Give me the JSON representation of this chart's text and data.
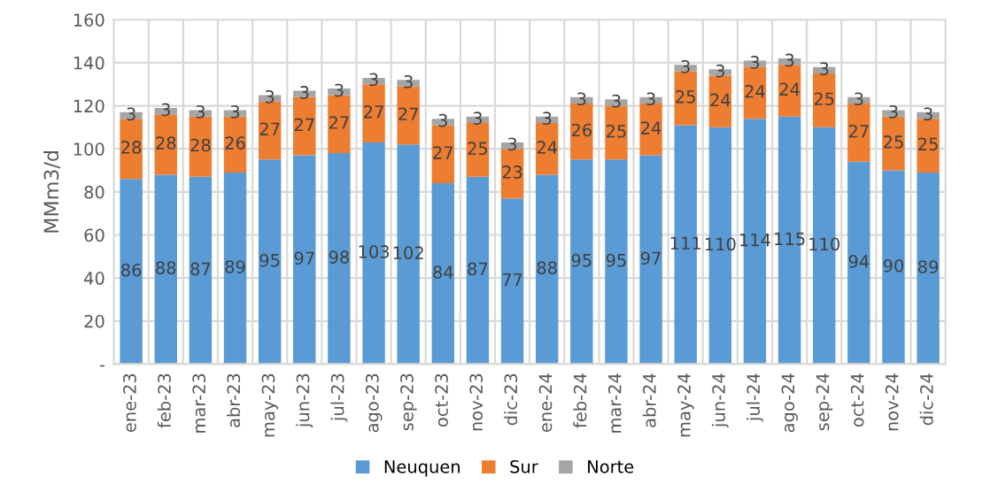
{
  "chart_data": {
    "type": "bar",
    "stacked": true,
    "ylabel": "MMm3/d",
    "categories": [
      "ene-23",
      "feb-23",
      "mar-23",
      "abr-23",
      "may-23",
      "jun-23",
      "jul-23",
      "ago-23",
      "sep-23",
      "oct-23",
      "nov-23",
      "dic-23",
      "ene-24",
      "feb-24",
      "mar-24",
      "abr-24",
      "may-24",
      "jun-24",
      "jul-24",
      "ago-24",
      "sep-24",
      "oct-24",
      "nov-24",
      "dic-24"
    ],
    "series": [
      {
        "name": "Neuquen",
        "color": "#5b9bd5",
        "values": [
          86,
          88,
          87,
          89,
          95,
          97,
          98,
          103,
          102,
          84,
          87,
          77,
          88,
          95,
          95,
          97,
          111,
          110,
          114,
          115,
          110,
          94,
          90,
          89
        ]
      },
      {
        "name": "Sur",
        "color": "#ed7d31",
        "values": [
          28,
          28,
          28,
          26,
          27,
          27,
          27,
          27,
          27,
          27,
          25,
          23,
          24,
          26,
          25,
          24,
          25,
          24,
          24,
          24,
          25,
          27,
          25,
          25
        ]
      },
      {
        "name": "Norte",
        "color": "#a5a5a5",
        "values": [
          3,
          3,
          3,
          3,
          3,
          3,
          3,
          3,
          3,
          3,
          3,
          3,
          3,
          3,
          3,
          3,
          3,
          3,
          3,
          3,
          3,
          3,
          3,
          3
        ]
      }
    ],
    "ylim": [
      0,
      160
    ],
    "yticks": [
      {
        "value": 0,
        "label": "-"
      },
      20,
      40,
      60,
      80,
      100,
      120,
      140,
      160
    ],
    "grid": true,
    "legend": "bottom",
    "data_labels": true
  }
}
